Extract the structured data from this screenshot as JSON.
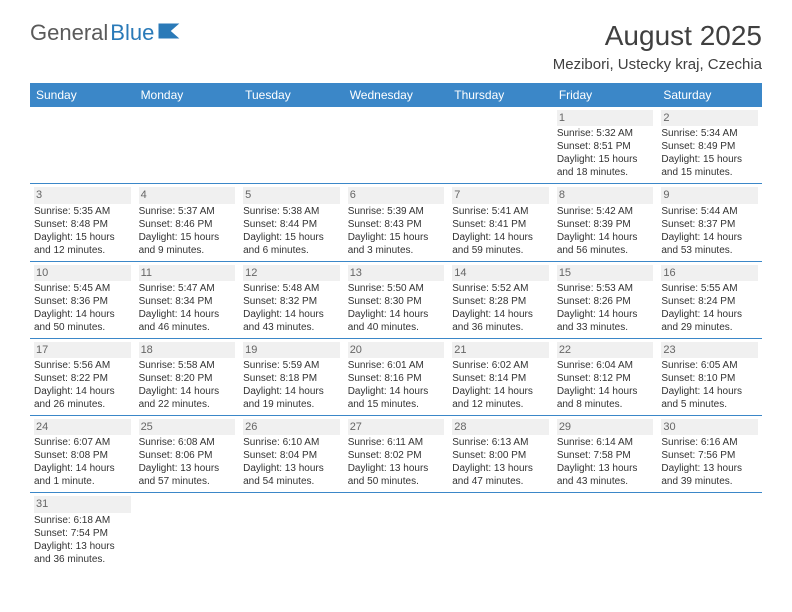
{
  "logo": {
    "text1": "General",
    "text2": "Blue"
  },
  "title": "August 2025",
  "location": "Mezibori, Ustecky kraj, Czechia",
  "colors": {
    "header_bg": "#3b87c8",
    "header_text": "#ffffff",
    "border": "#3b87c8",
    "logo_gray": "#5a5a5a",
    "logo_blue": "#2a7ab8",
    "text": "#333333",
    "daynum_bg": "#f0f0f0"
  },
  "weekdays": [
    "Sunday",
    "Monday",
    "Tuesday",
    "Wednesday",
    "Thursday",
    "Friday",
    "Saturday"
  ],
  "weeks": [
    [
      null,
      null,
      null,
      null,
      null,
      {
        "n": "1",
        "sunrise": "5:32 AM",
        "sunset": "8:51 PM",
        "daylight": "15 hours and 18 minutes."
      },
      {
        "n": "2",
        "sunrise": "5:34 AM",
        "sunset": "8:49 PM",
        "daylight": "15 hours and 15 minutes."
      }
    ],
    [
      {
        "n": "3",
        "sunrise": "5:35 AM",
        "sunset": "8:48 PM",
        "daylight": "15 hours and 12 minutes."
      },
      {
        "n": "4",
        "sunrise": "5:37 AM",
        "sunset": "8:46 PM",
        "daylight": "15 hours and 9 minutes."
      },
      {
        "n": "5",
        "sunrise": "5:38 AM",
        "sunset": "8:44 PM",
        "daylight": "15 hours and 6 minutes."
      },
      {
        "n": "6",
        "sunrise": "5:39 AM",
        "sunset": "8:43 PM",
        "daylight": "15 hours and 3 minutes."
      },
      {
        "n": "7",
        "sunrise": "5:41 AM",
        "sunset": "8:41 PM",
        "daylight": "14 hours and 59 minutes."
      },
      {
        "n": "8",
        "sunrise": "5:42 AM",
        "sunset": "8:39 PM",
        "daylight": "14 hours and 56 minutes."
      },
      {
        "n": "9",
        "sunrise": "5:44 AM",
        "sunset": "8:37 PM",
        "daylight": "14 hours and 53 minutes."
      }
    ],
    [
      {
        "n": "10",
        "sunrise": "5:45 AM",
        "sunset": "8:36 PM",
        "daylight": "14 hours and 50 minutes."
      },
      {
        "n": "11",
        "sunrise": "5:47 AM",
        "sunset": "8:34 PM",
        "daylight": "14 hours and 46 minutes."
      },
      {
        "n": "12",
        "sunrise": "5:48 AM",
        "sunset": "8:32 PM",
        "daylight": "14 hours and 43 minutes."
      },
      {
        "n": "13",
        "sunrise": "5:50 AM",
        "sunset": "8:30 PM",
        "daylight": "14 hours and 40 minutes."
      },
      {
        "n": "14",
        "sunrise": "5:52 AM",
        "sunset": "8:28 PM",
        "daylight": "14 hours and 36 minutes."
      },
      {
        "n": "15",
        "sunrise": "5:53 AM",
        "sunset": "8:26 PM",
        "daylight": "14 hours and 33 minutes."
      },
      {
        "n": "16",
        "sunrise": "5:55 AM",
        "sunset": "8:24 PM",
        "daylight": "14 hours and 29 minutes."
      }
    ],
    [
      {
        "n": "17",
        "sunrise": "5:56 AM",
        "sunset": "8:22 PM",
        "daylight": "14 hours and 26 minutes."
      },
      {
        "n": "18",
        "sunrise": "5:58 AM",
        "sunset": "8:20 PM",
        "daylight": "14 hours and 22 minutes."
      },
      {
        "n": "19",
        "sunrise": "5:59 AM",
        "sunset": "8:18 PM",
        "daylight": "14 hours and 19 minutes."
      },
      {
        "n": "20",
        "sunrise": "6:01 AM",
        "sunset": "8:16 PM",
        "daylight": "14 hours and 15 minutes."
      },
      {
        "n": "21",
        "sunrise": "6:02 AM",
        "sunset": "8:14 PM",
        "daylight": "14 hours and 12 minutes."
      },
      {
        "n": "22",
        "sunrise": "6:04 AM",
        "sunset": "8:12 PM",
        "daylight": "14 hours and 8 minutes."
      },
      {
        "n": "23",
        "sunrise": "6:05 AM",
        "sunset": "8:10 PM",
        "daylight": "14 hours and 5 minutes."
      }
    ],
    [
      {
        "n": "24",
        "sunrise": "6:07 AM",
        "sunset": "8:08 PM",
        "daylight": "14 hours and 1 minute."
      },
      {
        "n": "25",
        "sunrise": "6:08 AM",
        "sunset": "8:06 PM",
        "daylight": "13 hours and 57 minutes."
      },
      {
        "n": "26",
        "sunrise": "6:10 AM",
        "sunset": "8:04 PM",
        "daylight": "13 hours and 54 minutes."
      },
      {
        "n": "27",
        "sunrise": "6:11 AM",
        "sunset": "8:02 PM",
        "daylight": "13 hours and 50 minutes."
      },
      {
        "n": "28",
        "sunrise": "6:13 AM",
        "sunset": "8:00 PM",
        "daylight": "13 hours and 47 minutes."
      },
      {
        "n": "29",
        "sunrise": "6:14 AM",
        "sunset": "7:58 PM",
        "daylight": "13 hours and 43 minutes."
      },
      {
        "n": "30",
        "sunrise": "6:16 AM",
        "sunset": "7:56 PM",
        "daylight": "13 hours and 39 minutes."
      }
    ],
    [
      {
        "n": "31",
        "sunrise": "6:18 AM",
        "sunset": "7:54 PM",
        "daylight": "13 hours and 36 minutes."
      },
      null,
      null,
      null,
      null,
      null,
      null
    ]
  ],
  "labels": {
    "sunrise": "Sunrise:",
    "sunset": "Sunset:",
    "daylight": "Daylight:"
  }
}
